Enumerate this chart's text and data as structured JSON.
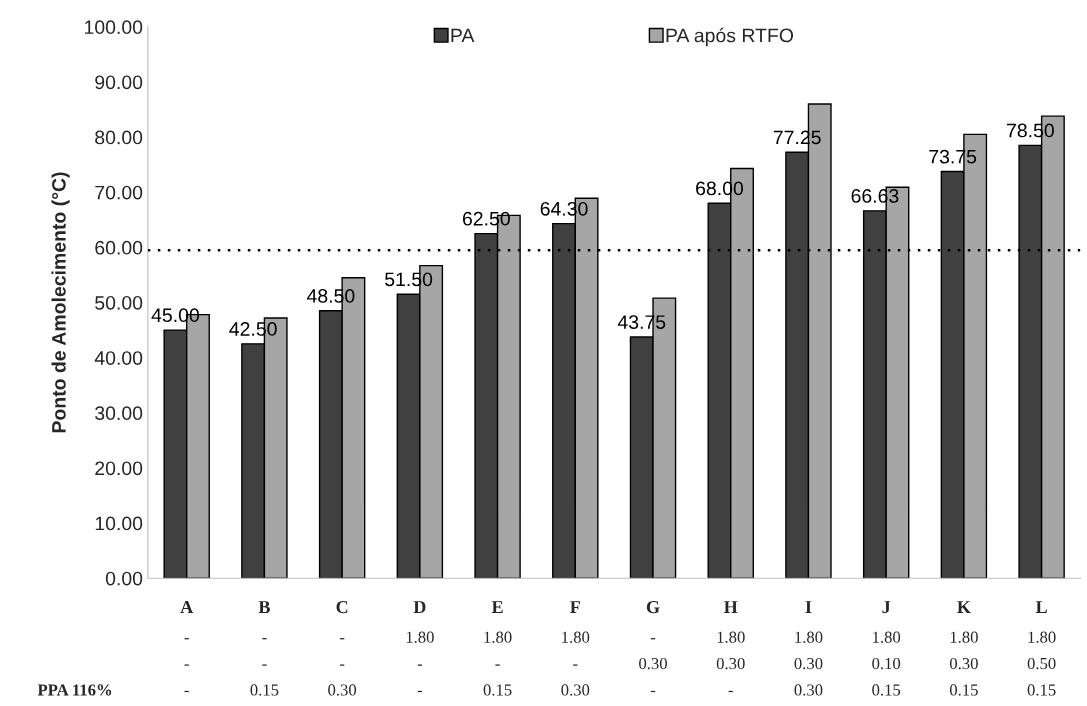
{
  "chart_data": {
    "type": "bar",
    "ylabel": "Ponto de Amolecimento (°C)",
    "categories": [
      "A",
      "B",
      "C",
      "D",
      "E",
      "F",
      "G",
      "H",
      "I",
      "J",
      "K",
      "L"
    ],
    "series": [
      {
        "name": "PA",
        "color": "#404040",
        "values": [
          45.0,
          42.5,
          48.5,
          51.5,
          62.5,
          64.3,
          43.75,
          68.0,
          77.25,
          66.63,
          73.75,
          78.5
        ],
        "value_labels": [
          "45.00",
          "42.50",
          "48.50",
          "51.50",
          "62.50",
          "64.30",
          "43.75",
          "68.00",
          "77.25",
          "66.63",
          "73.75",
          "78.50"
        ]
      },
      {
        "name": "PA após RTFO",
        "color": "#a6a6a6",
        "values": [
          47.8,
          47.2,
          54.5,
          56.7,
          65.8,
          68.9,
          50.8,
          74.3,
          86.0,
          70.9,
          80.5,
          83.8
        ]
      }
    ],
    "ylim": [
      0,
      100
    ],
    "yticks": [
      {
        "value": 0,
        "label": "0.00"
      },
      {
        "value": 10,
        "label": "10.00"
      },
      {
        "value": 20,
        "label": "20.00"
      },
      {
        "value": 30,
        "label": "30.00"
      },
      {
        "value": 40,
        "label": "40.00"
      },
      {
        "value": 50,
        "label": "50.00"
      },
      {
        "value": 60,
        "label": "60.00"
      },
      {
        "value": 70,
        "label": "70.00"
      },
      {
        "value": 80,
        "label": "80.00"
      },
      {
        "value": 90,
        "label": "90.00"
      },
      {
        "value": 100,
        "label": "100.00"
      }
    ],
    "ref_lines": [
      {
        "axis": "y",
        "value": 59.5,
        "color": "#000000",
        "line_style": "dotted"
      }
    ],
    "legend": "top",
    "grid": false,
    "annotations": [
      "PPA 116%",
      "-",
      "-",
      "-",
      "1.80",
      "1.80",
      "1.80",
      "-",
      "1.80",
      "1.80",
      "1.80",
      "1.80",
      "1.80",
      "-",
      "-",
      "-",
      "-",
      "-",
      "-",
      "0.30",
      "0.30",
      "0.30",
      "0.10",
      "0.30",
      "0.50",
      "-",
      "0.15",
      "0.30",
      "-",
      "0.15",
      "0.30",
      "-",
      "-",
      "0.30",
      "0.15",
      "0.15",
      "0.15"
    ]
  }
}
